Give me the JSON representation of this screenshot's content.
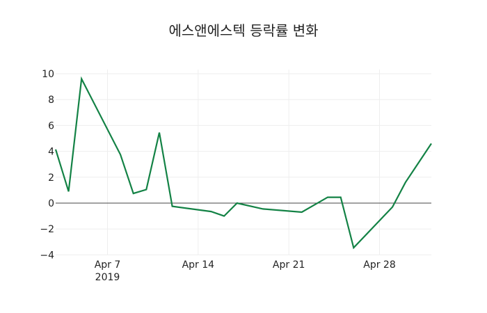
{
  "chart_data": {
    "type": "line",
    "title": "에스앤에스텍 등락률 변화",
    "xlabel": "",
    "ylabel": "",
    "ylim": [
      -4,
      10.5
    ],
    "xlim": [
      "2019-04-03",
      "2019-05-02"
    ],
    "grid": true,
    "legend": null,
    "x_ticks": [
      {
        "label": "Apr 7",
        "sublabel": "2019",
        "date": "2019-04-07"
      },
      {
        "label": "Apr 14",
        "sublabel": "",
        "date": "2019-04-14"
      },
      {
        "label": "Apr 21",
        "sublabel": "",
        "date": "2019-04-21"
      },
      {
        "label": "Apr 28",
        "sublabel": "",
        "date": "2019-04-28"
      }
    ],
    "y_ticks": [
      "10",
      "8",
      "6",
      "4",
      "2",
      "0",
      "−2",
      "−4"
    ],
    "series": [
      {
        "name": "등락률",
        "color": "#138245",
        "x": [
          "2019-04-03",
          "2019-04-04",
          "2019-04-05",
          "2019-04-08",
          "2019-04-09",
          "2019-04-10",
          "2019-04-11",
          "2019-04-12",
          "2019-04-15",
          "2019-04-16",
          "2019-04-17",
          "2019-04-19",
          "2019-04-22",
          "2019-04-24",
          "2019-04-25",
          "2019-04-26",
          "2019-04-29",
          "2019-04-30",
          "2019-05-02"
        ],
        "values": [
          4.15,
          0.9,
          9.6,
          3.75,
          0.75,
          1.05,
          5.45,
          -0.25,
          -0.65,
          -1.0,
          0.0,
          -0.45,
          -0.7,
          0.45,
          0.45,
          -3.45,
          -0.3,
          1.6,
          4.6
        ]
      }
    ]
  }
}
